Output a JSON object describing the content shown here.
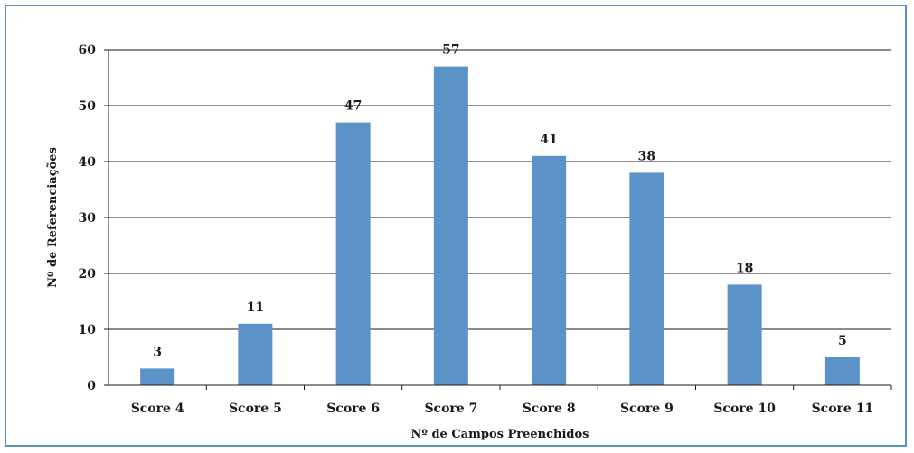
{
  "chart_data": {
    "type": "bar",
    "categories": [
      "Score 4",
      "Score 5",
      "Score 6",
      "Score 7",
      "Score 8",
      "Score 9",
      "Score 10",
      "Score 11"
    ],
    "values": [
      3,
      11,
      47,
      57,
      41,
      38,
      18,
      5
    ],
    "data_labels": [
      "3",
      "11",
      "47",
      "57",
      "41",
      "38",
      "18",
      "5"
    ],
    "yticks": [
      "0",
      "10",
      "20",
      "30",
      "40",
      "50",
      "60"
    ],
    "ylim": [
      0,
      60
    ],
    "xlabel": "Nº de Campos Preenchidos",
    "ylabel": "Nº de Referenciações",
    "grid": true,
    "bar_color": "#5b93c9",
    "frame_color": "#5b8fc5"
  }
}
